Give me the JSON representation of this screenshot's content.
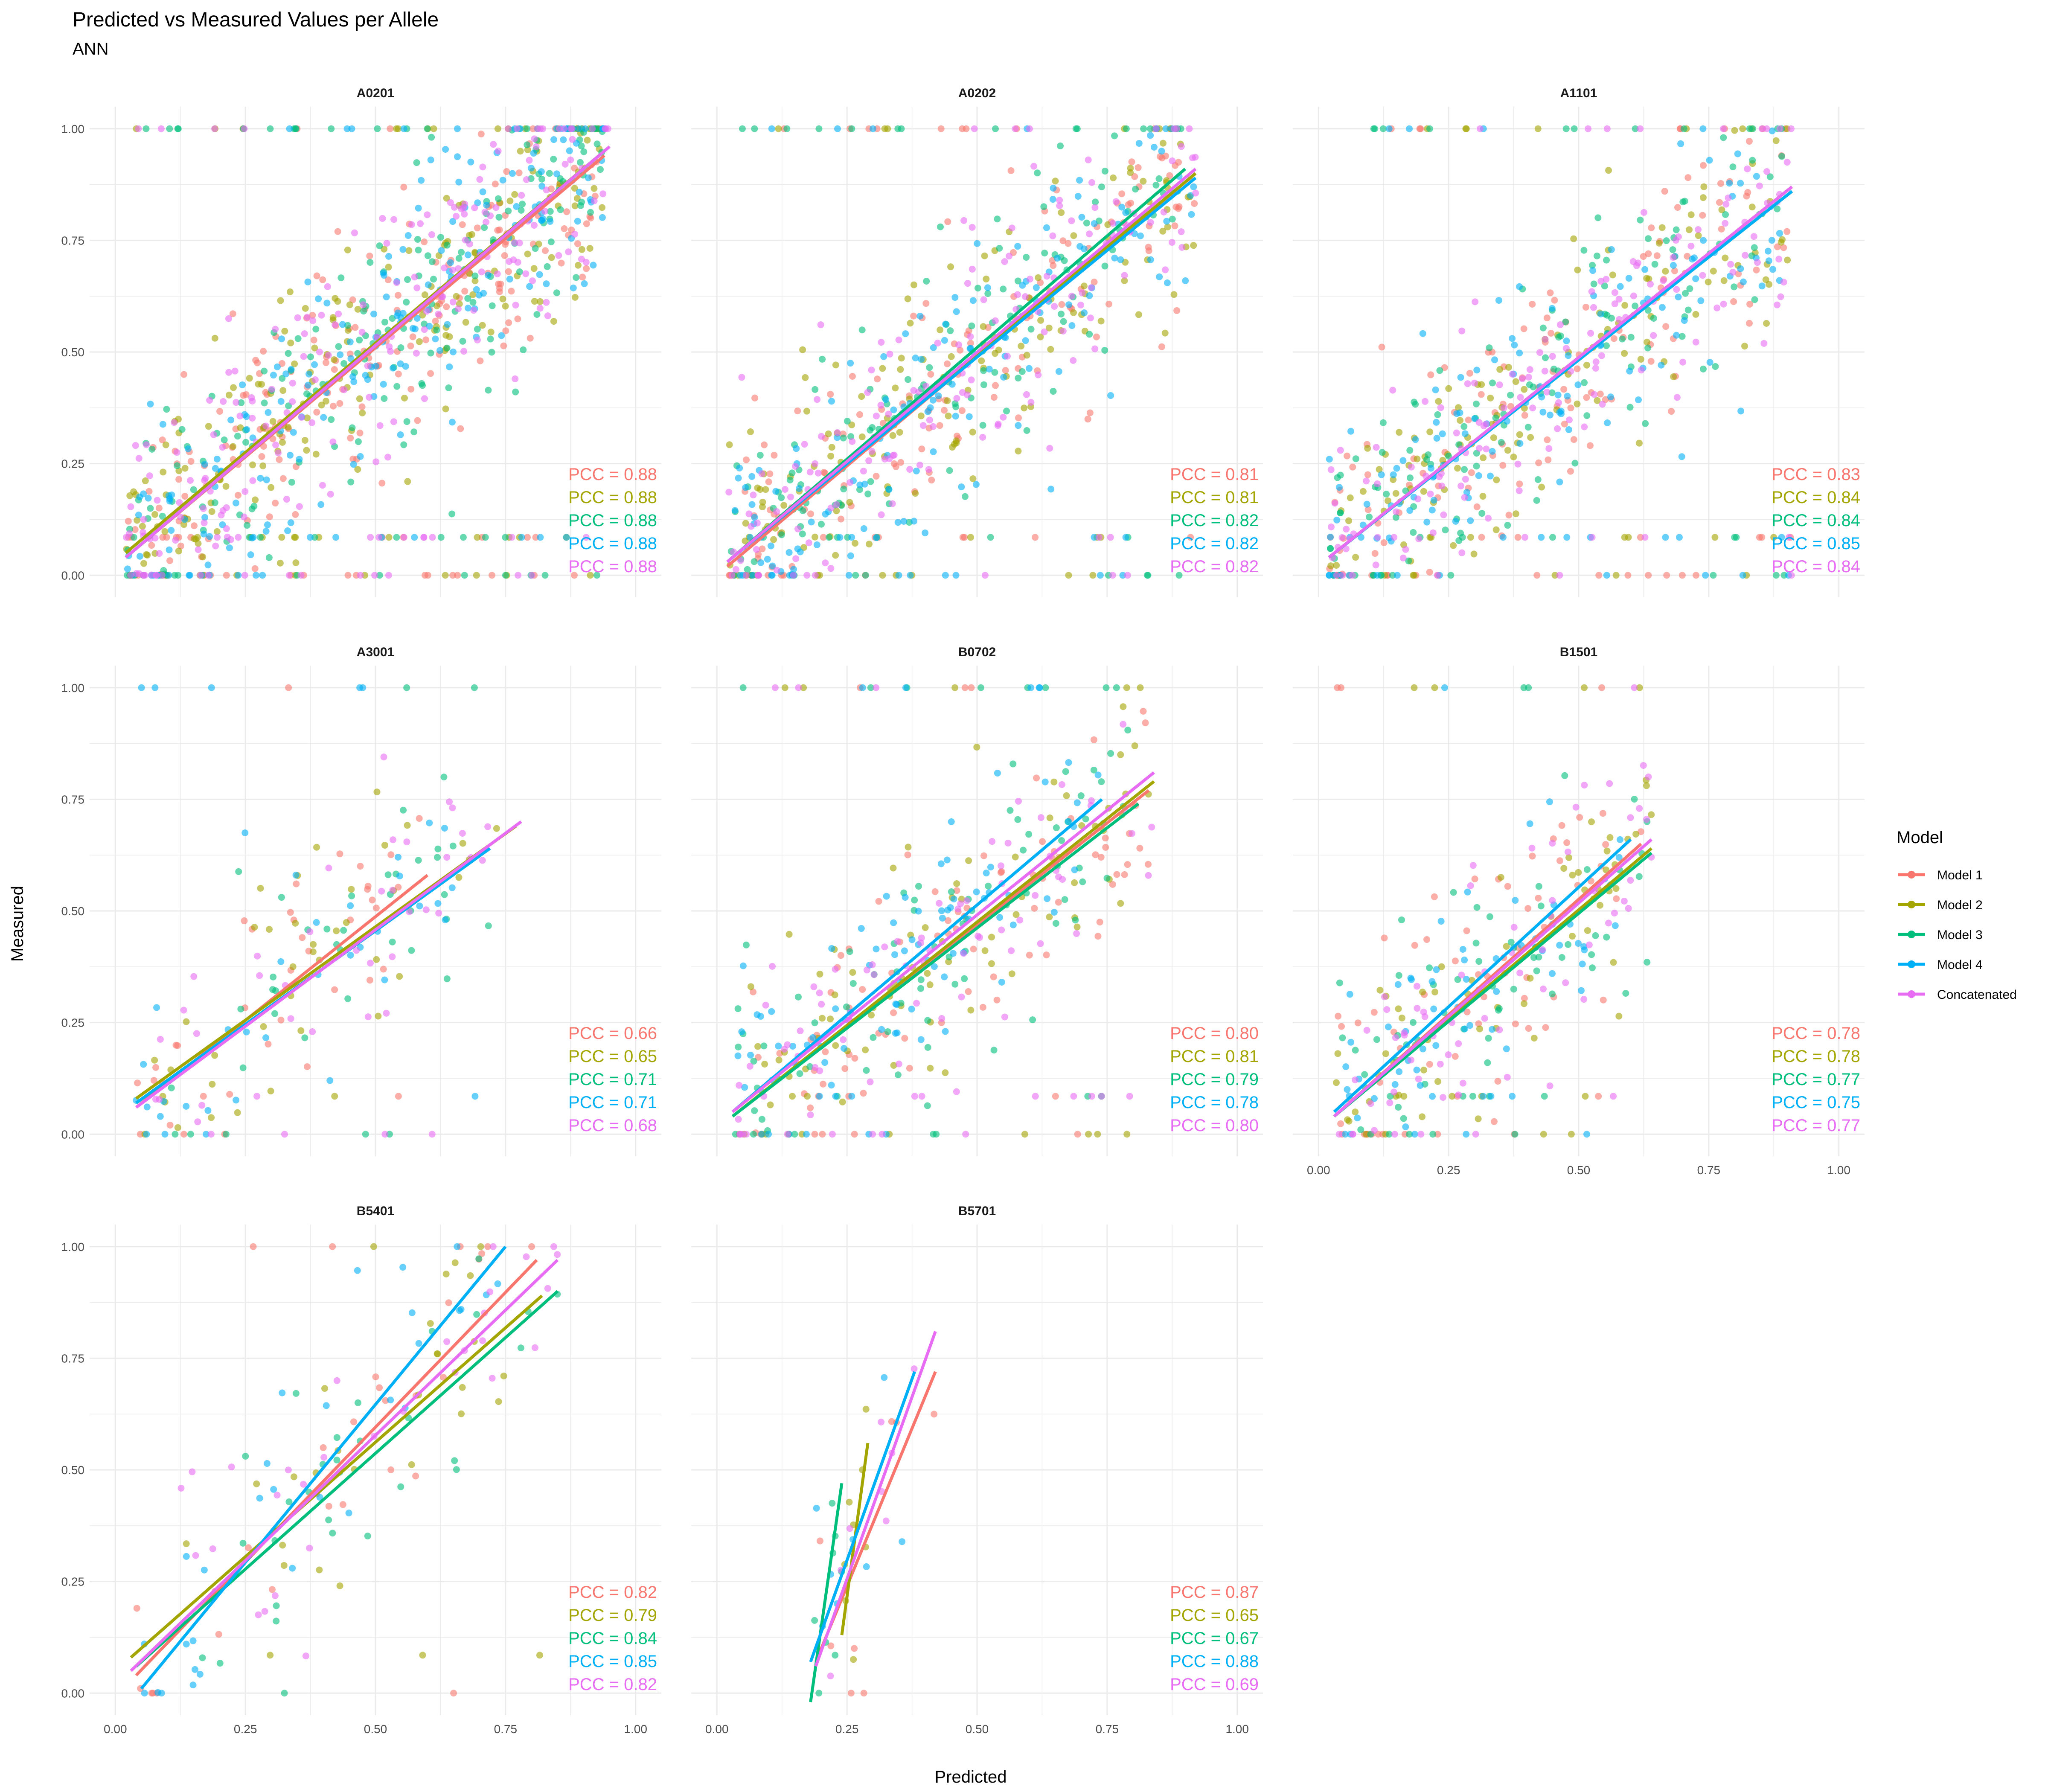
{
  "chart_data": {
    "type": "scatter",
    "title": "Predicted vs Measured Values per Allele",
    "subtitle": "ANN",
    "xlabel": "Predicted",
    "ylabel": "Measured",
    "xlim": [
      0,
      1
    ],
    "ylim": [
      0,
      1
    ],
    "x_ticks": [
      "0.00",
      "0.25",
      "0.50",
      "0.75",
      "1.00"
    ],
    "y_ticks": [
      "0.00",
      "0.25",
      "0.50",
      "0.75",
      "1.00"
    ],
    "grid": true,
    "legend": {
      "title": "Model",
      "placement": "right",
      "entries": [
        {
          "name": "Model 1",
          "color": "#F8766D"
        },
        {
          "name": "Model 2",
          "color": "#A3A500"
        },
        {
          "name": "Model 3",
          "color": "#00BF7D"
        },
        {
          "name": "Model 4",
          "color": "#00B0F6"
        },
        {
          "name": "Concatenated",
          "color": "#E76BF3"
        }
      ]
    },
    "panels": [
      {
        "allele": "A0201",
        "pcc": [
          "PCC = 0.88",
          "PCC = 0.88",
          "PCC = 0.88",
          "PCC = 0.88",
          "PCC = 0.88"
        ],
        "fits": [
          [
            0.02,
            0.04,
            0.94,
            0.94
          ],
          [
            0.02,
            0.05,
            0.94,
            0.95
          ],
          [
            0.02,
            0.04,
            0.94,
            0.95
          ],
          [
            0.02,
            0.04,
            0.94,
            0.95
          ],
          [
            0.02,
            0.04,
            0.95,
            0.96
          ]
        ]
      },
      {
        "allele": "A0202",
        "pcc": [
          "PCC = 0.81",
          "PCC = 0.81",
          "PCC = 0.82",
          "PCC = 0.82",
          "PCC = 0.82"
        ],
        "fits": [
          [
            0.02,
            0.02,
            0.92,
            0.9
          ],
          [
            0.02,
            0.03,
            0.92,
            0.9
          ],
          [
            0.02,
            0.03,
            0.9,
            0.91
          ],
          [
            0.02,
            0.03,
            0.92,
            0.89
          ],
          [
            0.02,
            0.03,
            0.92,
            0.91
          ]
        ]
      },
      {
        "allele": "A1101",
        "pcc": [
          "PCC = 0.83",
          "PCC = 0.84",
          "PCC = 0.84",
          "PCC = 0.85",
          "PCC = 0.84"
        ],
        "fits": [
          [
            0.02,
            0.04,
            0.91,
            0.86
          ],
          [
            0.02,
            0.04,
            0.91,
            0.87
          ],
          [
            0.02,
            0.04,
            0.91,
            0.86
          ],
          [
            0.02,
            0.04,
            0.91,
            0.86
          ],
          [
            0.02,
            0.04,
            0.91,
            0.87
          ]
        ]
      },
      {
        "allele": "A3001",
        "pcc": [
          "PCC = 0.66",
          "PCC = 0.65",
          "PCC = 0.71",
          "PCC = 0.71",
          "PCC = 0.68"
        ],
        "fits": [
          [
            0.04,
            0.06,
            0.6,
            0.58
          ],
          [
            0.04,
            0.08,
            0.77,
            0.69
          ],
          [
            0.04,
            0.07,
            0.72,
            0.64
          ],
          [
            0.04,
            0.07,
            0.72,
            0.64
          ],
          [
            0.04,
            0.06,
            0.78,
            0.7
          ]
        ]
      },
      {
        "allele": "B0702",
        "pcc": [
          "PCC = 0.80",
          "PCC = 0.81",
          "PCC = 0.79",
          "PCC = 0.78",
          "PCC = 0.80"
        ],
        "fits": [
          [
            0.03,
            0.04,
            0.83,
            0.77
          ],
          [
            0.03,
            0.04,
            0.84,
            0.79
          ],
          [
            0.03,
            0.04,
            0.81,
            0.74
          ],
          [
            0.03,
            0.05,
            0.74,
            0.75
          ],
          [
            0.03,
            0.05,
            0.84,
            0.81
          ]
        ]
      },
      {
        "allele": "B1501",
        "pcc": [
          "PCC = 0.78",
          "PCC = 0.78",
          "PCC = 0.77",
          "PCC = 0.75",
          "PCC = 0.77"
        ],
        "fits": [
          [
            0.03,
            0.04,
            0.62,
            0.65
          ],
          [
            0.03,
            0.04,
            0.64,
            0.64
          ],
          [
            0.03,
            0.04,
            0.64,
            0.63
          ],
          [
            0.03,
            0.05,
            0.6,
            0.66
          ],
          [
            0.03,
            0.04,
            0.64,
            0.66
          ]
        ]
      },
      {
        "allele": "B5401",
        "pcc": [
          "PCC = 0.82",
          "PCC = 0.79",
          "PCC = 0.84",
          "PCC = 0.85",
          "PCC = 0.82"
        ],
        "fits": [
          [
            0.04,
            0.04,
            0.81,
            0.97
          ],
          [
            0.03,
            0.08,
            0.82,
            0.89
          ],
          [
            0.04,
            0.06,
            0.85,
            0.9
          ],
          [
            0.05,
            0.01,
            0.75,
            1.0
          ],
          [
            0.03,
            0.05,
            0.85,
            0.97
          ]
        ]
      },
      {
        "allele": "B5701",
        "pcc": [
          "PCC = 0.87",
          "PCC = 0.65",
          "PCC = 0.67",
          "PCC = 0.88",
          "PCC = 0.69"
        ],
        "fits": [
          [
            0.19,
            0.07,
            0.42,
            0.72
          ],
          [
            0.24,
            0.13,
            0.29,
            0.56
          ],
          [
            0.18,
            -0.02,
            0.24,
            0.47
          ],
          [
            0.18,
            0.07,
            0.38,
            0.72
          ],
          [
            0.19,
            0.06,
            0.42,
            0.81
          ]
        ]
      }
    ]
  }
}
